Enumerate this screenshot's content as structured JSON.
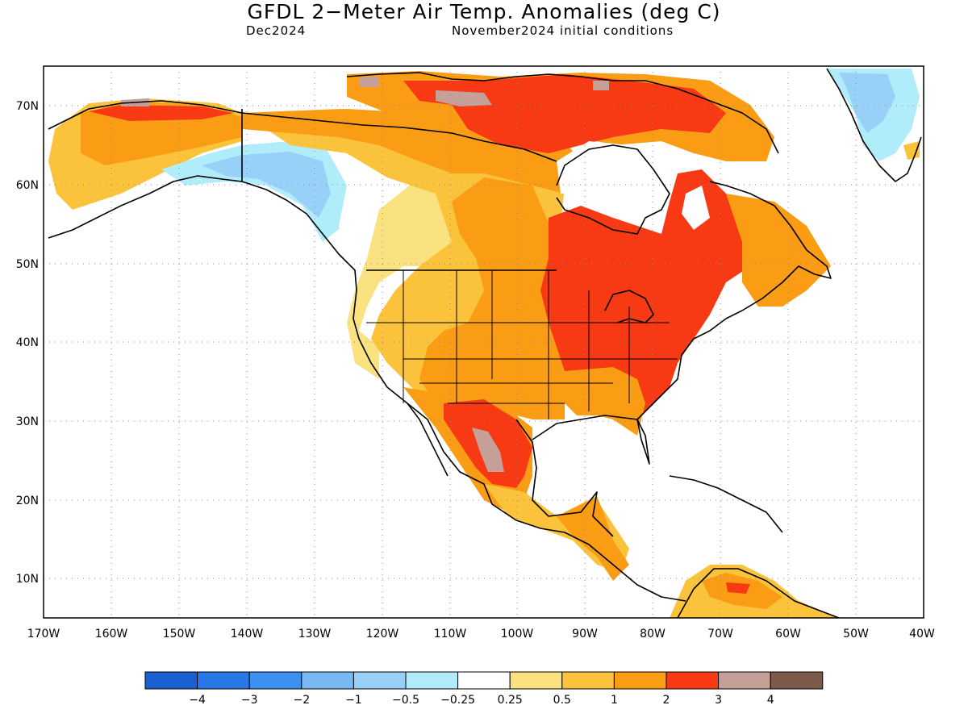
{
  "title": "GFDL 2−Meter Air Temp. Anomalies (deg C)",
  "valid_month": "Dec2024",
  "init_conditions": "November2024 initial conditions",
  "lat_labels": [
    "70N",
    "60N",
    "50N",
    "40N",
    "30N",
    "20N",
    "10N"
  ],
  "lon_labels": [
    "170W",
    "160W",
    "150W",
    "140W",
    "130W",
    "120W",
    "110W",
    "100W",
    "90W",
    "80W",
    "70W",
    "60W",
    "50W",
    "40W"
  ],
  "legend": {
    "colors": [
      "#1a60d0",
      "#2a78e8",
      "#3c90f0",
      "#78b8f4",
      "#98d0f8",
      "#b0ecfa",
      "#ffffff",
      "#fbe280",
      "#fbc23c",
      "#fa9c14",
      "#f83a14",
      "#c4a098",
      "#7e5a4c"
    ],
    "labels": [
      "−4",
      "−3",
      "−2",
      "−1",
      "−0.5",
      "−0.25",
      "0.25",
      "0.5",
      "1",
      "2",
      "3",
      "4"
    ]
  },
  "chart_data": {
    "type": "heatmap",
    "title": "GFDL 2−Meter Air Temp. Anomalies (deg C)",
    "x_range": [
      "170W",
      "40W"
    ],
    "y_range": [
      "5N",
      "75N"
    ],
    "regions": [
      {
        "region": "Alaska",
        "anomaly_range": [
          0.5,
          2
        ]
      },
      {
        "region": "Yukon / British Columbia coast",
        "anomaly_range": [
          -2,
          -0.25
        ]
      },
      {
        "region": "Western US",
        "anomaly_range": [
          0.25,
          1
        ]
      },
      {
        "region": "Central US / Great Plains",
        "anomaly_range": [
          1,
          2
        ]
      },
      {
        "region": "Eastern US / Great Lakes / Ohio Valley",
        "anomaly_range": [
          2,
          3
        ]
      },
      {
        "region": "Quebec / Hudson Bay region",
        "anomaly_range": [
          2,
          3
        ]
      },
      {
        "region": "Canadian Arctic Archipelago",
        "anomaly_range": [
          2,
          4
        ]
      },
      {
        "region": "Northern Mexico highlands",
        "anomaly_range": [
          2,
          4
        ]
      },
      {
        "region": "Southern Mexico / Central America",
        "anomaly_range": [
          1,
          2
        ]
      },
      {
        "region": "Northern South America",
        "anomaly_range": [
          0.5,
          2
        ]
      },
      {
        "region": "Greenland interior",
        "anomaly_range": [
          -2,
          -0.25
        ]
      }
    ]
  }
}
